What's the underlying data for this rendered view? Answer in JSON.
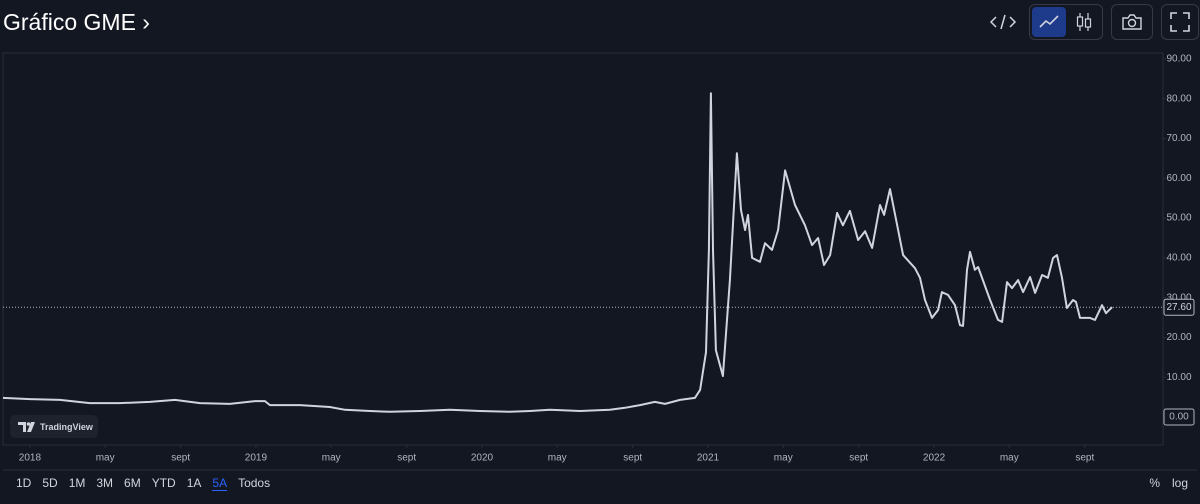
{
  "header": {
    "title": "Gráfico GME ›"
  },
  "chart_data": {
    "type": "line",
    "color": "#d1d4dc",
    "log_scale": false,
    "grid": false,
    "x": [
      2017.881,
      2018.0,
      2018.133,
      2018.265,
      2018.398,
      2018.531,
      2018.642,
      2018.752,
      2018.885,
      2018.996,
      2019.04,
      2019.062,
      2019.195,
      2019.327,
      2019.394,
      2019.504,
      2019.593,
      2019.726,
      2019.858,
      2019.991,
      2020.124,
      2020.212,
      2020.301,
      2020.434,
      2020.566,
      2020.633,
      2020.699,
      2020.765,
      2020.81,
      2020.876,
      2020.942,
      2020.965,
      2020.991,
      2021.004,
      2021.013,
      2021.022,
      2021.035,
      2021.066,
      2021.097,
      2021.128,
      2021.146,
      2021.164,
      2021.177,
      2021.195,
      2021.23,
      2021.252,
      2021.283,
      2021.31,
      2021.341,
      2021.385,
      2021.429,
      2021.46,
      2021.487,
      2021.513,
      2021.54,
      2021.571,
      2021.597,
      2021.628,
      2021.664,
      2021.695,
      2021.726,
      2021.761,
      2021.779,
      2021.805,
      2021.863,
      2021.916,
      2021.938,
      2021.96,
      2021.991,
      2022.018,
      2022.035,
      2022.062,
      2022.093,
      2022.115,
      2022.128,
      2022.146,
      2022.159,
      2022.181,
      2022.195,
      2022.248,
      2022.283,
      2022.301,
      2022.323,
      2022.345,
      2022.372,
      2022.394,
      2022.425,
      2022.447,
      2022.478,
      2022.504,
      2022.527,
      2022.544,
      2022.566,
      2022.588,
      2022.615,
      2022.628,
      2022.646,
      2022.69,
      2022.712,
      2022.743,
      2022.761,
      2022.788
    ],
    "values": [
      4.8,
      4.5,
      4.3,
      3.5,
      3.5,
      3.8,
      4.3,
      3.5,
      3.3,
      4.0,
      4.0,
      3.0,
      3.0,
      2.5,
      1.8,
      1.5,
      1.3,
      1.5,
      1.8,
      1.5,
      1.3,
      1.5,
      1.8,
      1.5,
      1.8,
      2.3,
      3.0,
      3.8,
      3.3,
      4.3,
      4.8,
      6.8,
      16.3,
      42,
      81.4,
      42,
      16.8,
      10.3,
      34.4,
      66.3,
      52,
      47,
      50.8,
      40,
      39,
      43.7,
      42,
      47,
      62,
      53.3,
      48.2,
      43.2,
      45,
      38.2,
      40.7,
      51.3,
      48.2,
      51.8,
      44.5,
      46.7,
      42.5,
      53.3,
      50.8,
      57.3,
      40.7,
      37.4,
      35,
      29.4,
      24.9,
      26.9,
      31.4,
      30.7,
      28.1,
      23.1,
      22.9,
      37,
      41.5,
      37,
      37.7,
      29.4,
      24.4,
      23.9,
      33.9,
      32.4,
      34.4,
      31.4,
      35.2,
      31.2,
      35.7,
      35,
      40,
      40.7,
      35,
      27.4,
      29.4,
      28.9,
      24.9,
      24.9,
      24.4,
      28.1,
      26.1,
      27.6
    ],
    "xlim": [
      2017.881,
      2023.013
    ],
    "ylim": [
      -7.04,
      91.5
    ],
    "xticks": [
      {
        "value": 2018,
        "label": "2018"
      },
      {
        "value": 2018.333,
        "label": "may"
      },
      {
        "value": 2018.667,
        "label": "sept"
      },
      {
        "value": 2019,
        "label": "2019"
      },
      {
        "value": 2019.333,
        "label": "may"
      },
      {
        "value": 2019.667,
        "label": "sept"
      },
      {
        "value": 2020,
        "label": "2020"
      },
      {
        "value": 2020.333,
        "label": "may"
      },
      {
        "value": 2020.667,
        "label": "sept"
      },
      {
        "value": 2021,
        "label": "2021"
      },
      {
        "value": 2021.333,
        "label": "may"
      },
      {
        "value": 2021.667,
        "label": "sept"
      },
      {
        "value": 2022,
        "label": "2022"
      },
      {
        "value": 2022.333,
        "label": "may"
      },
      {
        "value": 2022.667,
        "label": "sept"
      }
    ],
    "yticks": [
      {
        "value": 0,
        "label": "0.00"
      },
      {
        "value": 10,
        "label": "10.00"
      },
      {
        "value": 20,
        "label": "20.00"
      },
      {
        "value": 30,
        "label": "30.00"
      },
      {
        "value": 40,
        "label": "40.00"
      },
      {
        "value": 50,
        "label": "50.00"
      },
      {
        "value": 60,
        "label": "60.00"
      },
      {
        "value": 70,
        "label": "70.00"
      },
      {
        "value": 80,
        "label": "80.00"
      },
      {
        "value": 90,
        "label": "90.00"
      }
    ],
    "price_line": {
      "value": 27.6,
      "label": "27.60"
    }
  },
  "logo": "TradingView",
  "ranges": [
    "1D",
    "5D",
    "1M",
    "3M",
    "6M",
    "YTD",
    "1A",
    "5A",
    "Todos"
  ],
  "active_range": "5A",
  "scale_options": [
    "%",
    "log"
  ]
}
